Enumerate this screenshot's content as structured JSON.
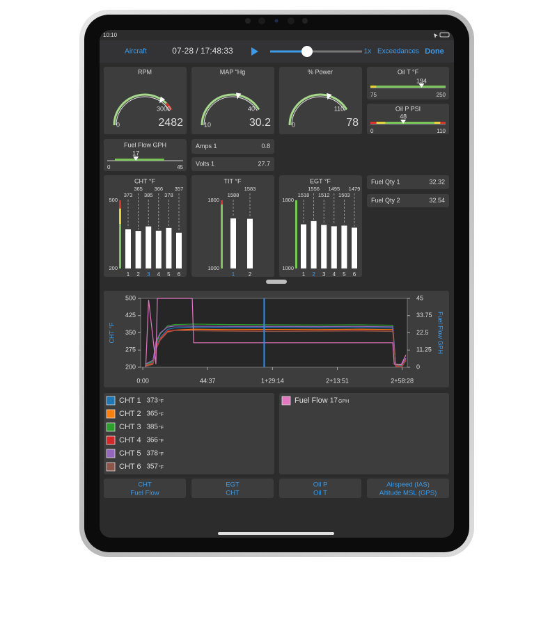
{
  "status_bar": {
    "time": "10:10"
  },
  "toolbar": {
    "aircraft": "Aircraft",
    "timestamp": "07-28 / 17:48:33",
    "speed": "1x",
    "exceedances": "Exceedances",
    "done": "Done"
  },
  "arc_gauges": [
    {
      "title": "RPM",
      "min": 0,
      "max": 3000,
      "value": 2482
    },
    {
      "title": "MAP \"Hg",
      "min": 10,
      "max": 40,
      "value": 30.2
    },
    {
      "title": "% Power",
      "min": 0,
      "max": 110,
      "value": 78
    }
  ],
  "linear_gauges": [
    {
      "title": "Oil T °F",
      "min": 75,
      "max": 250,
      "value": 194
    },
    {
      "title": "Oil P PSI",
      "min": 0,
      "max": 110,
      "value": 48
    },
    {
      "title": "Fuel Flow GPH",
      "min": 0,
      "max": 45,
      "value": 17
    }
  ],
  "readouts": [
    {
      "label": "Amps 1",
      "value": 0.8
    },
    {
      "label": "Volts 1",
      "value": 27.7
    },
    {
      "label": "Fuel Qty 1",
      "value": 32.32
    },
    {
      "label": "Fuel Qty 2",
      "value": 32.54
    }
  ],
  "bar_graphs": [
    {
      "title": "CHT °F",
      "ylim": [
        200,
        500
      ],
      "yticks": [
        200,
        500
      ],
      "categories": [
        "1",
        "2",
        "3",
        "4",
        "5",
        "6"
      ],
      "values": [
        373,
        365,
        385,
        366,
        378,
        357
      ],
      "selected_category": "3"
    },
    {
      "title": "TIT °F",
      "ylim": [
        1000,
        1800
      ],
      "yticks": [
        1000,
        1800
      ],
      "categories": [
        "1",
        "2"
      ],
      "values": [
        1588,
        1583
      ],
      "selected_category": "1"
    },
    {
      "title": "EGT °F",
      "ylim": [
        1000,
        1800
      ],
      "yticks": [
        1000,
        1800
      ],
      "categories": [
        "1",
        "2",
        "3",
        "4",
        "5",
        "6"
      ],
      "values": [
        1518,
        1556,
        1512,
        1495,
        1503,
        1479
      ],
      "selected_category": "2"
    }
  ],
  "trend_chart": {
    "type": "line",
    "y_label": "CHT °F",
    "y2_label": "Fuel Flow GPH",
    "xlim": [
      -1.5,
      182
    ],
    "xticks": [
      {
        "value": 0,
        "label": "0:00"
      },
      {
        "value": 44.62,
        "label": "44:37"
      },
      {
        "value": 89.23,
        "label": "1+29:14"
      },
      {
        "value": 133.85,
        "label": "2+13:51"
      },
      {
        "value": 178.47,
        "label": "2+58:28"
      }
    ],
    "ylim": [
      200,
      500
    ],
    "yticks": [
      200,
      275,
      350,
      425,
      500
    ],
    "y2lim": [
      0,
      45
    ],
    "y2ticks": [
      0,
      11.25,
      22.5,
      33.75,
      45
    ],
    "cursor": 83.5,
    "series": [
      {
        "name": "CHT 1",
        "color": "#1f77b4",
        "current": 373,
        "unit": "°F",
        "x": [
          2,
          7,
          9,
          12,
          17,
          22,
          35,
          60,
          90,
          120,
          150,
          172,
          174,
          178,
          181
        ],
        "values": [
          210,
          220,
          290,
          330,
          365,
          372,
          375,
          373,
          374,
          372,
          373,
          371,
          210,
          205,
          235
        ]
      },
      {
        "name": "CHT 2",
        "color": "#ff7f0e",
        "current": 365,
        "unit": "°F",
        "x": [
          2,
          7,
          9,
          12,
          17,
          22,
          35,
          60,
          90,
          120,
          150,
          172,
          174,
          178,
          181
        ],
        "values": [
          205,
          215,
          280,
          320,
          355,
          362,
          366,
          364,
          365,
          364,
          366,
          364,
          205,
          200,
          230
        ]
      },
      {
        "name": "CHT 3",
        "color": "#2ca02c",
        "current": 385,
        "unit": "°F",
        "x": [
          2,
          7,
          9,
          12,
          17,
          22,
          35,
          60,
          90,
          120,
          150,
          172,
          174,
          178,
          181
        ],
        "values": [
          212,
          225,
          300,
          345,
          380,
          386,
          388,
          386,
          385,
          384,
          385,
          383,
          212,
          208,
          238
        ]
      },
      {
        "name": "CHT 4",
        "color": "#d62728",
        "current": 366,
        "unit": "°F",
        "x": [
          2,
          7,
          9,
          12,
          17,
          22,
          35,
          60,
          90,
          120,
          150,
          172,
          174,
          178,
          181
        ],
        "values": [
          208,
          218,
          285,
          325,
          358,
          362,
          360,
          358,
          357,
          358,
          360,
          357,
          208,
          202,
          232
        ]
      },
      {
        "name": "CHT 5",
        "color": "#9467bd",
        "current": 378,
        "unit": "°F",
        "x": [
          2,
          7,
          9,
          12,
          17,
          22,
          35,
          60,
          90,
          120,
          150,
          172,
          174,
          178,
          181
        ],
        "values": [
          215,
          230,
          310,
          350,
          375,
          380,
          379,
          378,
          378,
          377,
          378,
          376,
          215,
          210,
          240
        ]
      },
      {
        "name": "CHT 6",
        "color": "#8c564b",
        "current": 357,
        "unit": "°F",
        "x": [
          2,
          7,
          9,
          12,
          17,
          22,
          35,
          60,
          90,
          120,
          150,
          172,
          174,
          178,
          181
        ],
        "values": [
          204,
          212,
          278,
          318,
          352,
          360,
          359,
          357,
          356,
          357,
          358,
          356,
          204,
          199,
          228
        ]
      },
      {
        "name": "Fuel Flow",
        "color": "#e377c2",
        "current": 17,
        "unit": "GPH",
        "axis": "y2",
        "x": [
          2,
          4,
          9,
          10,
          34,
          35,
          60,
          90,
          120,
          150,
          172,
          173,
          178,
          181
        ],
        "values": [
          0,
          44,
          2,
          45,
          45,
          16,
          16,
          16,
          16,
          16,
          16,
          2,
          2,
          8
        ]
      }
    ]
  },
  "buttons": [
    [
      "CHT",
      "Fuel Flow"
    ],
    [
      "EGT",
      "CHT"
    ],
    [
      "Oil P",
      "Oil T"
    ],
    [
      "Airspeed (IAS)",
      "Altitude MSL (GPS)"
    ]
  ]
}
